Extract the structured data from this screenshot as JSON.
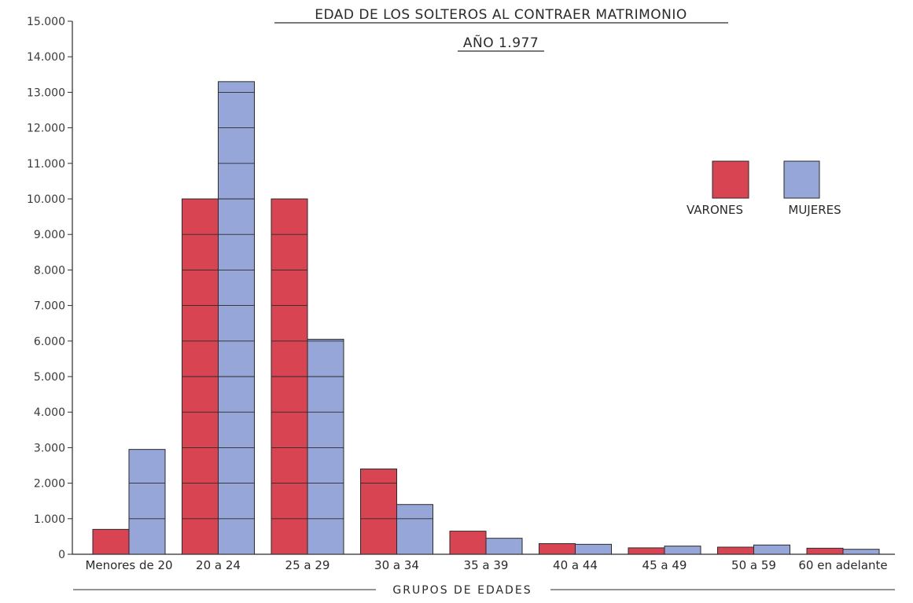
{
  "chart_data": {
    "type": "bar",
    "title": "EDAD DE LOS SOLTEROS AL CONTRAER MATRIMONIO",
    "subtitle": "AÑO 1.977",
    "xlabel": "GRUPOS DE EDADES",
    "ylabel": "",
    "ylim": [
      0,
      15000
    ],
    "yticks": [
      0,
      1000,
      2000,
      3000,
      4000,
      5000,
      6000,
      7000,
      8000,
      9000,
      10000,
      11000,
      12000,
      13000,
      14000,
      15000
    ],
    "ytick_labels": [
      "0",
      "1.000",
      "2.000",
      "3.000",
      "4.000",
      "5.000",
      "6.000",
      "7.000",
      "8.000",
      "9.000",
      "10.000",
      "11.000",
      "12.000",
      "13.000",
      "14.000",
      "15.000"
    ],
    "categories": [
      "Menores de 20",
      "20  a  24",
      "25  a  29",
      "30  a  34",
      "35  a  39",
      "40  a  44",
      "45  a  49",
      "50  a  59",
      "60 en adelante"
    ],
    "series": [
      {
        "name": "VARONES",
        "color": "#d94452",
        "values": [
          700,
          10000,
          10000,
          2400,
          650,
          300,
          180,
          200,
          170
        ]
      },
      {
        "name": "MUJERES",
        "color": "#97a6d8",
        "values": [
          2950,
          13300,
          6050,
          1400,
          450,
          280,
          230,
          260,
          140
        ]
      }
    ],
    "grid": false,
    "legend_position": "top-right"
  }
}
